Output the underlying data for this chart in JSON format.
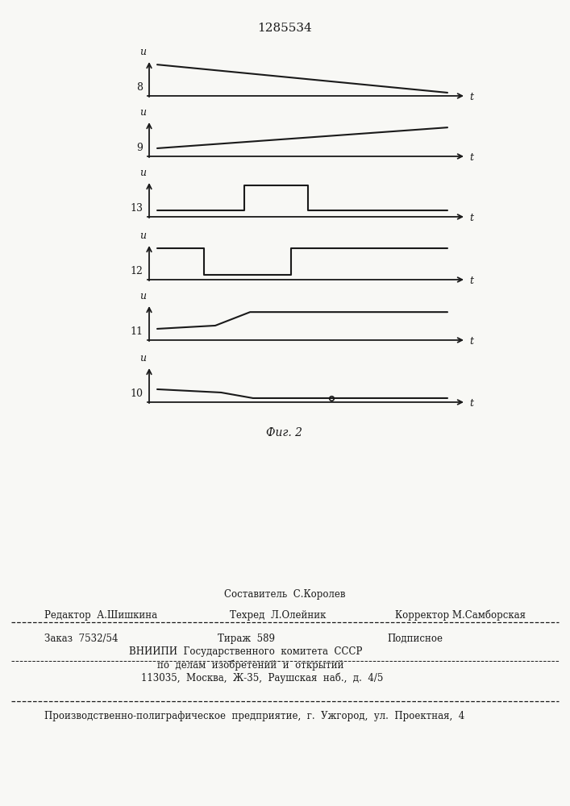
{
  "title_number": "1285534",
  "fig_label": "Фиг. 2",
  "bg_color": "#f8f8f5",
  "line_color": "#1a1a1a",
  "panels": [
    {
      "label": "u",
      "number": "8",
      "type": "ramp_down"
    },
    {
      "label": "u",
      "number": "9",
      "type": "ramp_up"
    },
    {
      "label": "u",
      "number": "13",
      "type": "pulse_mid"
    },
    {
      "label": "u",
      "number": "12",
      "type": "pulse_inv"
    },
    {
      "label": "u",
      "number": "11",
      "type": "step_up"
    },
    {
      "label": "u",
      "number": "10",
      "type": "step_down"
    }
  ],
  "footer": {
    "line1_sestavitel": "Составитель  С.Королев",
    "line2_editor": "Редактор  А.Шишкина",
    "line2_tekhred": "Техред  Л.Олейник",
    "line2_korrektor": "Корректор М.Самборская",
    "line3_zakaz": "Заказ  7532/54",
    "line3_tirazh": "Тираж  589",
    "line3_podpisnoe": "Подписное",
    "line4": "ВНИИПИ  Государственного  комитета  СССР",
    "line5": "по  делам  изобретений  и  открытий",
    "line6": "113035,  Москва,  Ж-35,  Раушская  наб.,  д.  4/5",
    "line7": "Производственно-полиграфическое  предприятие,  г.  Ужгород,  ул.  Проектная,  4"
  }
}
